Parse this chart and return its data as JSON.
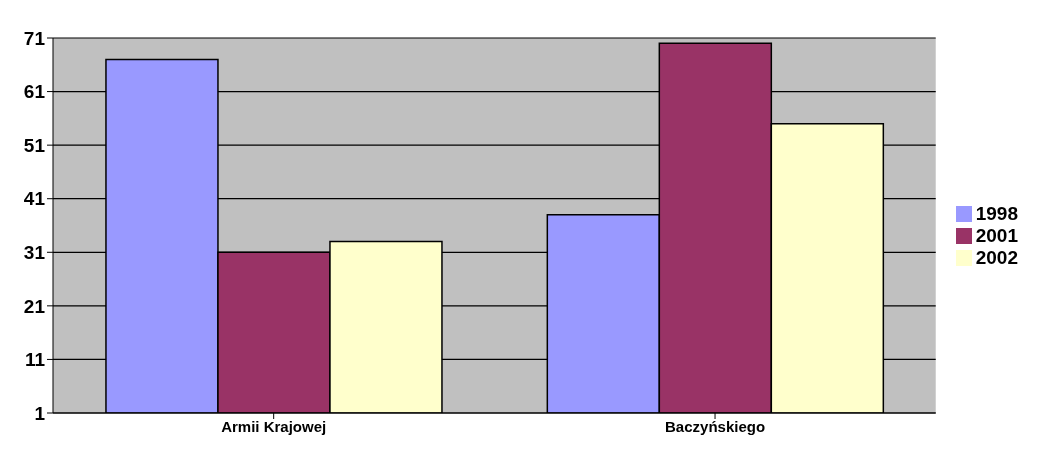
{
  "chart_data": {
    "type": "bar",
    "categories": [
      "Armii Krajowej",
      "Baczyńskiego"
    ],
    "series": [
      {
        "name": "1998",
        "color": "#9999ff",
        "values": [
          67,
          38
        ]
      },
      {
        "name": "2001",
        "color": "#993366",
        "values": [
          31,
          70
        ]
      },
      {
        "name": "2002",
        "color": "#ffffcc",
        "values": [
          33,
          55
        ]
      }
    ],
    "ylim": [
      1,
      71
    ],
    "yticks": [
      1,
      11,
      21,
      31,
      41,
      51,
      61,
      71
    ],
    "grid": "y",
    "legend": "right"
  }
}
